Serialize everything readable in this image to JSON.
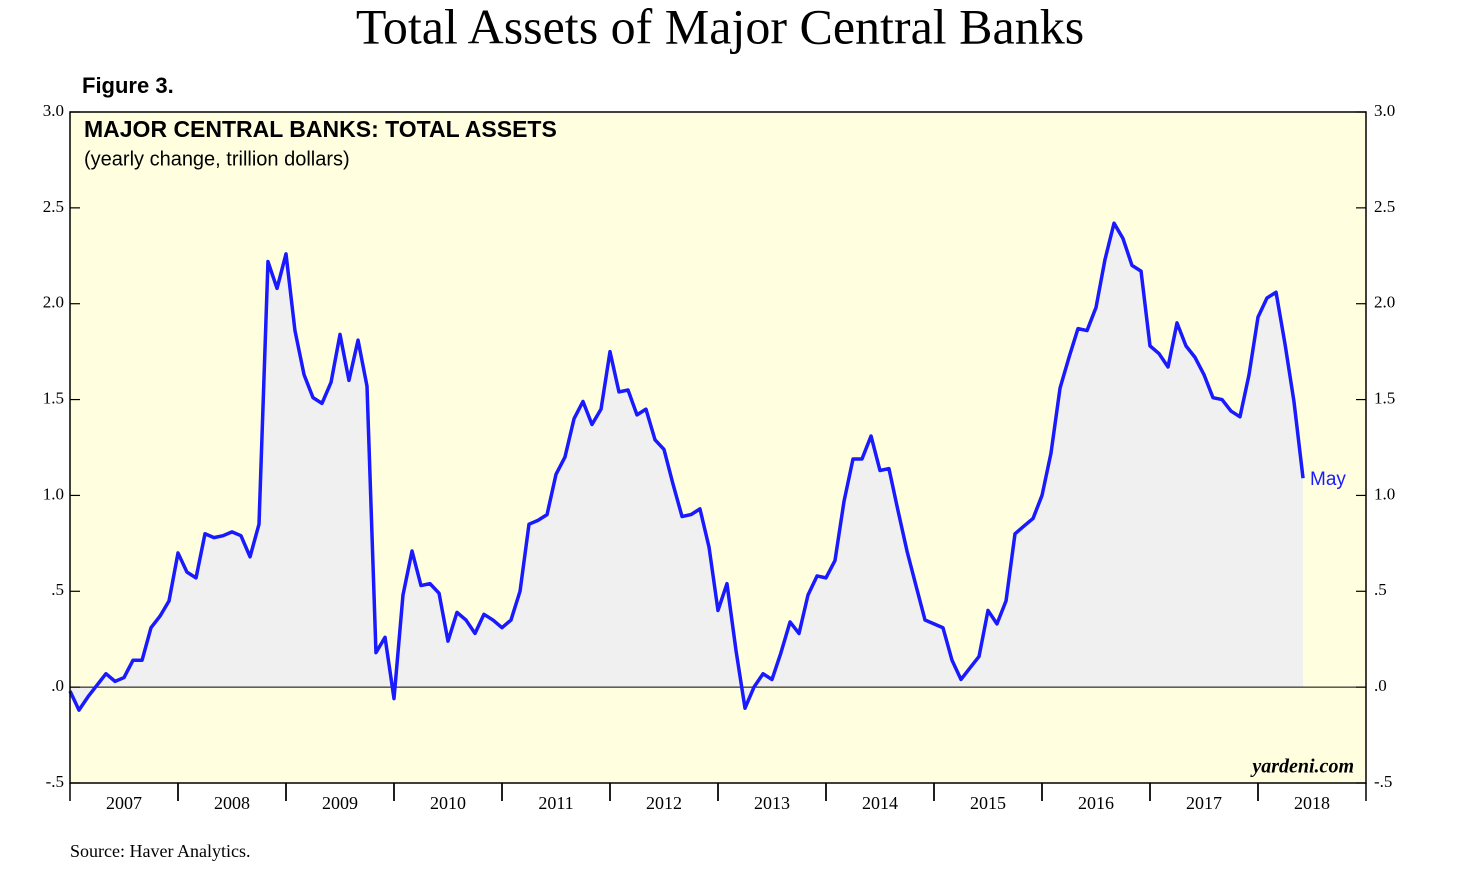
{
  "chart_data": {
    "type": "line",
    "title": "Total Assets of Major Central Banks",
    "figure_label": "Figure 3.",
    "panel_title": "MAJOR CENTRAL BANKS: TOTAL ASSETS",
    "subtitle": "(yearly change, trillion dollars)",
    "source": "Source: Haver Analytics.",
    "watermark": "yardeni.com",
    "end_label": "May",
    "background": "#ffffe0",
    "area_color": "#f0f0f0",
    "x": [
      2007.0,
      2007.083,
      2007.167,
      2007.25,
      2007.333,
      2007.417,
      2007.5,
      2007.583,
      2007.667,
      2007.75,
      2007.833,
      2007.917,
      2008.0,
      2008.083,
      2008.167,
      2008.25,
      2008.333,
      2008.417,
      2008.5,
      2008.583,
      2008.667,
      2008.75,
      2008.833,
      2008.917,
      2009.0,
      2009.083,
      2009.167,
      2009.25,
      2009.333,
      2009.417,
      2009.5,
      2009.583,
      2009.667,
      2009.75,
      2009.833,
      2009.917,
      2010.0,
      2010.083,
      2010.167,
      2010.25,
      2010.333,
      2010.417,
      2010.5,
      2010.583,
      2010.667,
      2010.75,
      2010.833,
      2010.917,
      2011.0,
      2011.083,
      2011.167,
      2011.25,
      2011.333,
      2011.417,
      2011.5,
      2011.583,
      2011.667,
      2011.75,
      2011.833,
      2011.917,
      2012.0,
      2012.083,
      2012.167,
      2012.25,
      2012.333,
      2012.417,
      2012.5,
      2012.583,
      2012.667,
      2012.75,
      2012.833,
      2012.917,
      2013.0,
      2013.083,
      2013.167,
      2013.25,
      2013.333,
      2013.417,
      2013.5,
      2013.583,
      2013.667,
      2013.75,
      2013.833,
      2013.917,
      2014.0,
      2014.083,
      2014.167,
      2014.25,
      2014.333,
      2014.417,
      2014.5,
      2014.583,
      2014.667,
      2014.75,
      2014.833,
      2014.917,
      2015.0,
      2015.083,
      2015.167,
      2015.25,
      2015.333,
      2015.417,
      2015.5,
      2015.583,
      2015.667,
      2015.75,
      2015.833,
      2015.917,
      2016.0,
      2016.083,
      2016.167,
      2016.25,
      2016.333,
      2016.417,
      2016.5,
      2016.583,
      2016.667,
      2016.75,
      2016.833,
      2016.917,
      2017.0,
      2017.083,
      2017.167,
      2017.25,
      2017.333,
      2017.417,
      2017.5,
      2017.583,
      2017.667,
      2017.75,
      2017.833,
      2017.917,
      2018.0,
      2018.083,
      2018.167,
      2018.25,
      2018.333,
      2018.417
    ],
    "series": [
      {
        "name": "Total assets yearly change",
        "color": "#1a1aff",
        "values": [
          -0.02,
          -0.12,
          -0.05,
          0.01,
          0.07,
          0.03,
          0.05,
          0.14,
          0.14,
          0.31,
          0.37,
          0.45,
          0.7,
          0.6,
          0.57,
          0.8,
          0.78,
          0.79,
          0.81,
          0.79,
          0.68,
          0.85,
          2.22,
          2.08,
          2.26,
          1.86,
          1.63,
          1.51,
          1.48,
          1.59,
          1.84,
          1.6,
          1.81,
          1.57,
          0.18,
          0.26,
          -0.06,
          0.48,
          0.71,
          0.53,
          0.54,
          0.49,
          0.24,
          0.39,
          0.35,
          0.28,
          0.38,
          0.35,
          0.31,
          0.35,
          0.5,
          0.85,
          0.87,
          0.9,
          1.11,
          1.2,
          1.4,
          1.49,
          1.37,
          1.45,
          1.75,
          1.54,
          1.55,
          1.42,
          1.45,
          1.29,
          1.24,
          1.06,
          0.89,
          0.9,
          0.93,
          0.73,
          0.4,
          0.54,
          0.19,
          -0.11,
          0.0,
          0.07,
          0.04,
          0.18,
          0.34,
          0.28,
          0.48,
          0.58,
          0.57,
          0.66,
          0.97,
          1.19,
          1.19,
          1.31,
          1.13,
          1.14,
          0.92,
          0.71,
          0.53,
          0.35,
          0.33,
          0.31,
          0.14,
          0.04,
          0.1,
          0.16,
          0.4,
          0.33,
          0.45,
          0.8,
          0.84,
          0.88,
          1.0,
          1.22,
          1.56,
          1.72,
          1.87,
          1.86,
          1.98,
          2.23,
          2.42,
          2.34,
          2.2,
          2.17,
          1.78,
          1.74,
          1.67,
          1.9,
          1.78,
          1.72,
          1.63,
          1.51,
          1.5,
          1.44,
          1.41,
          1.63,
          1.93,
          2.03,
          2.06,
          1.79,
          1.49,
          1.09
        ]
      }
    ],
    "xlim": [
      2007,
      2019
    ],
    "xticks": [
      {
        "value": 2007.5,
        "label": "2007"
      },
      {
        "value": 2008.5,
        "label": "2008"
      },
      {
        "value": 2009.5,
        "label": "2009"
      },
      {
        "value": 2010.5,
        "label": "2010"
      },
      {
        "value": 2011.5,
        "label": "2011"
      },
      {
        "value": 2012.5,
        "label": "2012"
      },
      {
        "value": 2013.5,
        "label": "2013"
      },
      {
        "value": 2014.5,
        "label": "2014"
      },
      {
        "value": 2015.5,
        "label": "2015"
      },
      {
        "value": 2016.5,
        "label": "2016"
      },
      {
        "value": 2017.5,
        "label": "2017"
      },
      {
        "value": 2018.5,
        "label": "2018"
      }
    ],
    "ylim": [
      -0.5,
      3.0
    ],
    "yticks": [
      {
        "value": -0.5,
        "label": "-.5"
      },
      {
        "value": 0,
        "label": ".0"
      },
      {
        "value": 0.5,
        "label": ".5"
      },
      {
        "value": 1.0,
        "label": "1.0"
      },
      {
        "value": 1.5,
        "label": "1.5"
      },
      {
        "value": 2.0,
        "label": "2.0"
      },
      {
        "value": 2.5,
        "label": "2.5"
      },
      {
        "value": 3.0,
        "label": "3.0"
      }
    ],
    "zero_line": 0
  }
}
